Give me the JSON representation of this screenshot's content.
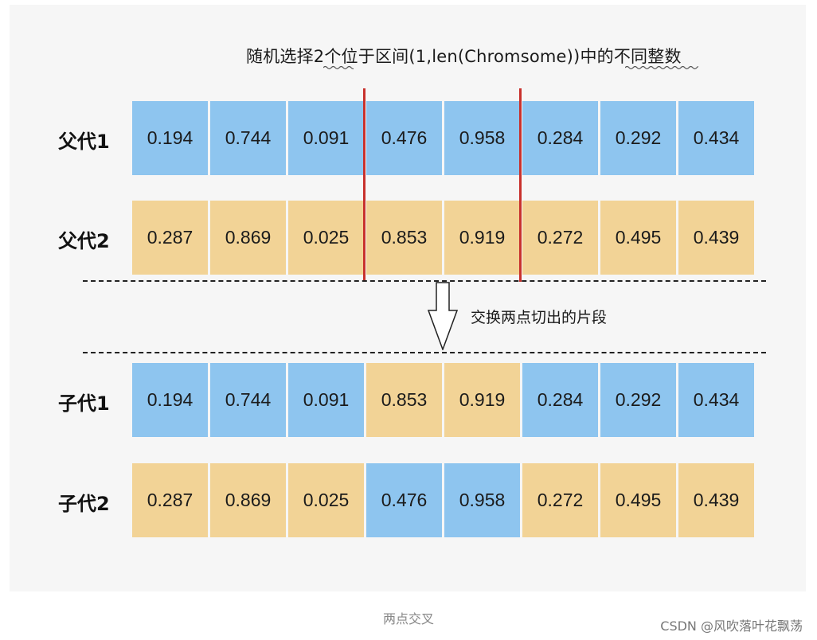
{
  "top_caption": "随机选择2个位于区间(1,len(Chromsome))中的不同整数",
  "middle_caption": "交换两点切出的片段",
  "footer_caption": "两点交叉",
  "watermark": "CSDN @风吹落叶花飘荡",
  "colors": {
    "blue": "#8ec5ef",
    "orange": "#f2d396",
    "cut_line": "#c8312d"
  },
  "rows": [
    {
      "label": "父代1",
      "cells": [
        {
          "v": "0.194",
          "c": "blue"
        },
        {
          "v": "0.744",
          "c": "blue"
        },
        {
          "v": "0.091",
          "c": "blue"
        },
        {
          "v": "0.476",
          "c": "blue"
        },
        {
          "v": "0.958",
          "c": "blue"
        },
        {
          "v": "0.284",
          "c": "blue"
        },
        {
          "v": "0.292",
          "c": "blue"
        },
        {
          "v": "0.434",
          "c": "blue"
        }
      ]
    },
    {
      "label": "父代2",
      "cells": [
        {
          "v": "0.287",
          "c": "orange"
        },
        {
          "v": "0.869",
          "c": "orange"
        },
        {
          "v": "0.025",
          "c": "orange"
        },
        {
          "v": "0.853",
          "c": "orange"
        },
        {
          "v": "0.919",
          "c": "orange"
        },
        {
          "v": "0.272",
          "c": "orange"
        },
        {
          "v": "0.495",
          "c": "orange"
        },
        {
          "v": "0.439",
          "c": "orange"
        }
      ]
    },
    {
      "label": "子代1",
      "cells": [
        {
          "v": "0.194",
          "c": "blue"
        },
        {
          "v": "0.744",
          "c": "blue"
        },
        {
          "v": "0.091",
          "c": "blue"
        },
        {
          "v": "0.853",
          "c": "orange"
        },
        {
          "v": "0.919",
          "c": "orange"
        },
        {
          "v": "0.284",
          "c": "blue"
        },
        {
          "v": "0.292",
          "c": "blue"
        },
        {
          "v": "0.434",
          "c": "blue"
        }
      ]
    },
    {
      "label": "子代2",
      "cells": [
        {
          "v": "0.287",
          "c": "orange"
        },
        {
          "v": "0.869",
          "c": "orange"
        },
        {
          "v": "0.025",
          "c": "orange"
        },
        {
          "v": "0.476",
          "c": "blue"
        },
        {
          "v": "0.958",
          "c": "blue"
        },
        {
          "v": "0.272",
          "c": "orange"
        },
        {
          "v": "0.495",
          "c": "orange"
        },
        {
          "v": "0.439",
          "c": "orange"
        }
      ]
    }
  ]
}
